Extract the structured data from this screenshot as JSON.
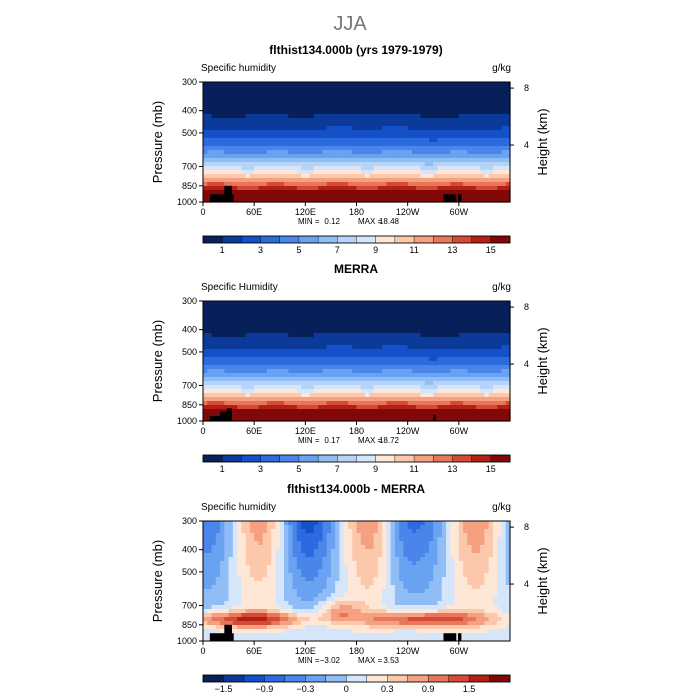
{
  "figure_title": "JJA",
  "chart_data": [
    {
      "type": "heatmap",
      "title": "flthist134.000b (yrs 1979-1979)",
      "left_label": "Specific humidity",
      "right_label": "g/kg",
      "ylabel": "Pressure (mb)",
      "ylabel_right": "Height (km)",
      "pressure_ticks": [
        300,
        400,
        500,
        700,
        850,
        1000
      ],
      "height_ticks": [
        8,
        4
      ],
      "height_km": [
        8,
        4
      ],
      "xticks": [
        "0",
        "60E",
        "120E",
        "180",
        "120W",
        "60W"
      ],
      "x_lon": [
        0,
        60,
        120,
        180,
        240,
        300
      ],
      "min_label": "MIN =",
      "min_value": "0.12",
      "max_label": "MAX =",
      "max_value": "18.48",
      "colorbar": {
        "labels": [
          "1",
          "3",
          "5",
          "7",
          "9",
          "11",
          "13",
          "15"
        ],
        "label_bins": [
          1,
          3,
          5,
          7,
          9,
          11,
          13,
          15
        ],
        "colors": [
          "#08205a",
          "#0c3a9b",
          "#1450c8",
          "#2c6ae0",
          "#4a86ea",
          "#6aa2f2",
          "#90bdf6",
          "#b5d4f8",
          "#d6e6fa",
          "#ffe7d8",
          "#fbc8ac",
          "#f5a080",
          "#e8765a",
          "#d44a34",
          "#b52016",
          "#820808"
        ]
      },
      "land_blocks": [
        {
          "lon0": 8,
          "lon1": 36,
          "p": 925
        },
        {
          "lon0": 25,
          "lon1": 34,
          "p": 850
        },
        {
          "lon0": 282,
          "lon1": 297,
          "p": 925
        },
        {
          "lon0": 299,
          "lon1": 303,
          "p": 925
        }
      ],
      "mode": "abs"
    },
    {
      "type": "heatmap",
      "title": "MERRA",
      "left_label": "Specific Humidity",
      "right_label": "g/kg",
      "ylabel": "Pressure (mb)",
      "ylabel_right": "Height (km)",
      "pressure_ticks": [
        300,
        400,
        500,
        700,
        850,
        1000
      ],
      "height_ticks": [
        8,
        4
      ],
      "height_km": [
        8,
        4
      ],
      "xticks": [
        "0",
        "60E",
        "120E",
        "180",
        "120W",
        "60W"
      ],
      "x_lon": [
        0,
        60,
        120,
        180,
        240,
        300
      ],
      "min_label": "MIN =",
      "min_value": "0.17",
      "max_label": "MAX =",
      "max_value": "18.72",
      "colorbar": {
        "labels": [
          "1",
          "3",
          "5",
          "7",
          "9",
          "11",
          "13",
          "15"
        ],
        "label_bins": [
          1,
          3,
          5,
          7,
          9,
          11,
          13,
          15
        ],
        "colors": [
          "#08205a",
          "#0c3a9b",
          "#1450c8",
          "#2c6ae0",
          "#4a86ea",
          "#6aa2f2",
          "#90bdf6",
          "#b5d4f8",
          "#d6e6fa",
          "#ffe7d8",
          "#fbc8ac",
          "#f5a080",
          "#e8765a",
          "#d44a34",
          "#b52016",
          "#820808"
        ]
      },
      "land_blocks": [
        {
          "lon0": 8,
          "lon1": 32,
          "p": 950
        },
        {
          "lon0": 20,
          "lon1": 30,
          "p": 910
        },
        {
          "lon0": 28,
          "lon1": 34,
          "p": 880
        },
        {
          "lon0": 270,
          "lon1": 273,
          "p": 940
        }
      ],
      "mode": "abs"
    },
    {
      "type": "heatmap",
      "title": "flthist134.000b - MERRA",
      "left_label": "Specific humidity",
      "right_label": "g/kg",
      "ylabel": "Pressure (mb)",
      "ylabel_right": "Height (km)",
      "pressure_ticks": [
        300,
        400,
        500,
        700,
        850,
        1000
      ],
      "height_ticks": [
        8,
        4
      ],
      "height_km": [
        8,
        4
      ],
      "xticks": [
        "0",
        "60E",
        "120E",
        "180",
        "120W",
        "60W"
      ],
      "x_lon": [
        0,
        60,
        120,
        180,
        240,
        300
      ],
      "min_label": "MIN =",
      "min_value": "−3.02",
      "max_label": "MAX =",
      "max_value": "3.53",
      "colorbar": {
        "labels": [
          "−1.5",
          "−0.9",
          "−0.3",
          "0",
          "0.3",
          "0.9",
          "1.5"
        ],
        "label_bins": [
          1,
          3,
          5,
          7,
          9,
          11,
          13
        ],
        "colors": [
          "#08205a",
          "#0c3a9b",
          "#1450c8",
          "#2c6ae0",
          "#4a86ea",
          "#6aa2f2",
          "#90bdf6",
          "#d6e6fa",
          "#ffe7d8",
          "#fbc8ac",
          "#f5a080",
          "#e8765a",
          "#d44a34",
          "#b52016",
          "#820808"
        ]
      },
      "land_blocks": [
        {
          "lon0": 8,
          "lon1": 36,
          "p": 925
        },
        {
          "lon0": 25,
          "lon1": 34,
          "p": 850
        },
        {
          "lon0": 282,
          "lon1": 297,
          "p": 925
        },
        {
          "lon0": 299,
          "lon1": 303,
          "p": 925
        }
      ],
      "mode": "diff"
    }
  ]
}
